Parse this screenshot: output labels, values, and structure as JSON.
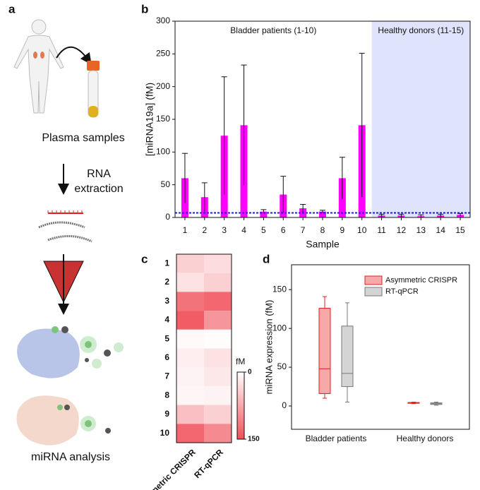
{
  "figure": {
    "panel_labels": [
      "a",
      "b",
      "c",
      "d"
    ],
    "diagram": {
      "steps": [
        "Plasma samples",
        "RNA",
        "extraction",
        "miRNA analysis"
      ]
    }
  },
  "chart_data": [
    {
      "type": "bar",
      "y_label": "[miRNA19a] (fM)",
      "x_label": "Sample",
      "categories": [
        "1",
        "2",
        "3",
        "4",
        "5",
        "6",
        "7",
        "8",
        "9",
        "10",
        "11",
        "12",
        "13",
        "14",
        "15"
      ],
      "values": [
        60,
        31,
        125,
        141,
        9,
        35,
        14,
        9,
        60,
        141,
        3,
        3,
        2,
        3,
        4
      ],
      "errors": [
        38,
        22,
        90,
        92,
        3,
        28,
        6,
        2,
        32,
        110,
        2,
        2,
        2,
        2,
        2
      ],
      "color": "#ff00ff",
      "threshold": 7,
      "threshold_color": "#1a1ae6",
      "annotations": [
        "Bladder patients (1-10)",
        "Healthy donors (11-15)"
      ],
      "shade_color": "#dfe3fb",
      "ylim": [
        0,
        300
      ],
      "yticks": [
        0,
        50,
        100,
        150,
        200,
        250,
        300
      ]
    },
    {
      "type": "heatmap",
      "rows": [
        "1",
        "2",
        "3",
        "4",
        "5",
        "6",
        "7",
        "8",
        "9",
        "10"
      ],
      "columns": [
        "Asymmetric CRISPR",
        "RT-qPCR"
      ],
      "values": [
        [
          40,
          30
        ],
        [
          25,
          40
        ],
        [
          120,
          130
        ],
        [
          140,
          90
        ],
        [
          5,
          3
        ],
        [
          15,
          25
        ],
        [
          10,
          20
        ],
        [
          8,
          10
        ],
        [
          55,
          40
        ],
        [
          130,
          100
        ]
      ],
      "colors": [
        "#ffffff",
        "#f0505a"
      ],
      "zlim": [
        0,
        150
      ],
      "zticks": [
        0,
        150
      ],
      "colorbar_label": "fM"
    },
    {
      "type": "box",
      "y_label": "miRNA expression (fM)",
      "categories": [
        "Bladder patients",
        "Healthy donors"
      ],
      "series": [
        {
          "name": "Asymmetric CRISPR",
          "color": "#f7a8a8",
          "edge": "#e02020",
          "stats": [
            [
              10,
              16,
              48,
              126,
              141
            ],
            [
              3,
              3.5,
              4,
              4.5,
              5
            ]
          ]
        },
        {
          "name": "RT-qPCR",
          "color": "#d4d4d4",
          "edge": "#777777",
          "stats": [
            [
              5,
              25,
              42,
              103,
              133
            ],
            [
              1,
              2,
              3,
              4,
              5
            ]
          ]
        }
      ],
      "legend": "upper right",
      "ylim": [
        -30,
        182
      ],
      "yticks": [
        0,
        50,
        100,
        150
      ]
    }
  ]
}
